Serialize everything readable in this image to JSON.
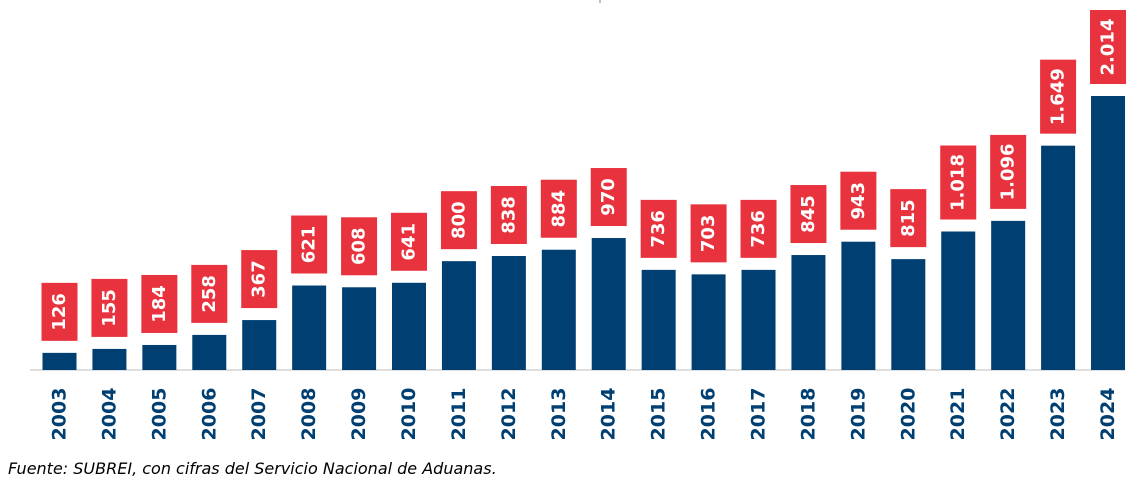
{
  "chart_data": {
    "type": "bar",
    "title": "",
    "xlabel": "",
    "ylabel": "",
    "categories": [
      "2003",
      "2004",
      "2005",
      "2006",
      "2007",
      "2008",
      "2009",
      "2010",
      "2011",
      "2012",
      "2013",
      "2014",
      "2015",
      "2016",
      "2017",
      "2018",
      "2019",
      "2020",
      "2021",
      "2022",
      "2023",
      "2024"
    ],
    "values": [
      126,
      155,
      184,
      258,
      367,
      621,
      608,
      641,
      800,
      838,
      884,
      970,
      736,
      703,
      736,
      845,
      943,
      815,
      1018,
      1096,
      1649,
      2014
    ],
    "data_labels": [
      "126",
      "155",
      "184",
      "258",
      "367",
      "621",
      "608",
      "641",
      "800",
      "838",
      "884",
      "970",
      "736",
      "703",
      "736",
      "845",
      "943",
      "815",
      "1.018",
      "1.096",
      "1.649",
      "2.014"
    ],
    "ylim": [
      0,
      2014
    ],
    "grid": false,
    "legend": "none",
    "colors": {
      "bar": "#003f72",
      "label_box": "#e8333e",
      "label_text": "#ffffff",
      "tick_text": "#003f72",
      "axis": "#bfbfbf"
    }
  },
  "source_note": "Fuente: SUBREI, con cifras del Servicio Nacional de Aduanas."
}
